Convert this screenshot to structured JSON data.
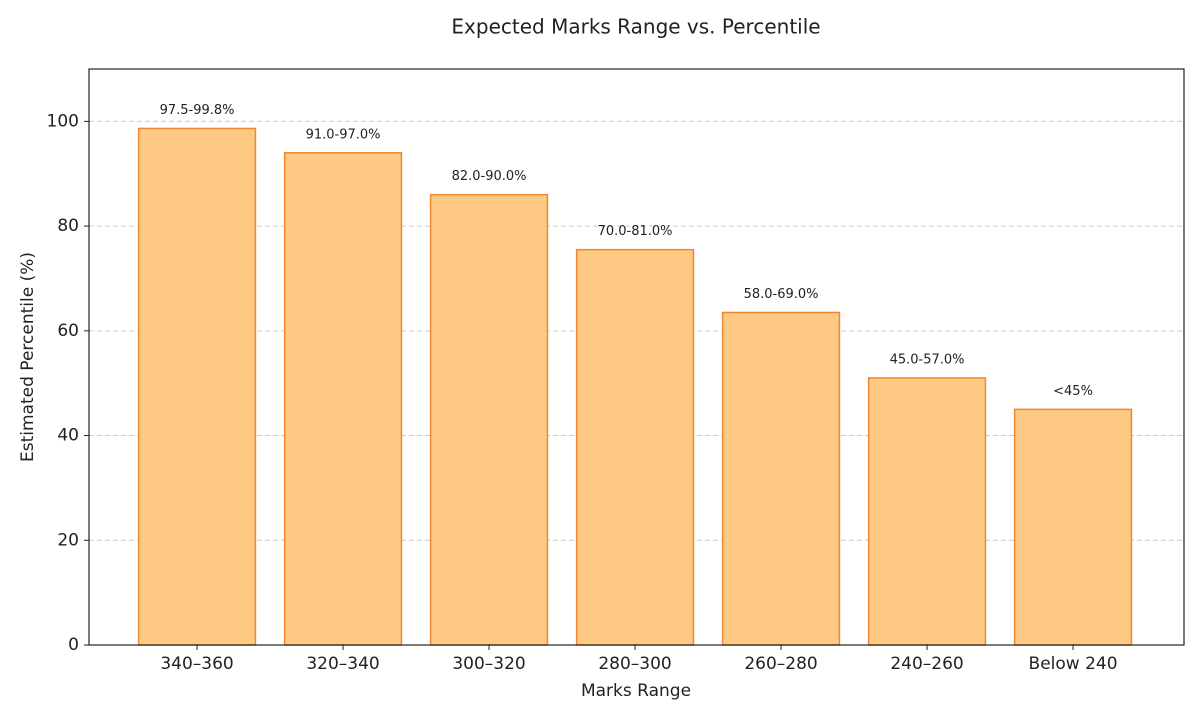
{
  "chart_data": {
    "type": "bar",
    "title": "Expected Marks Range vs. Percentile",
    "x_label": "Marks Range",
    "y_label": "Estimated Percentile (%)",
    "categories": [
      "340–360",
      "320–340",
      "300–320",
      "280–300",
      "260–280",
      "240–260",
      "Below 240"
    ],
    "values": [
      98.65,
      94,
      86,
      75.5,
      63.5,
      51,
      45
    ],
    "value_labels": [
      "97.5-99.8%",
      "91.0-97.0%",
      "82.0-90.0%",
      "70.0-81.0%",
      "58.0-69.0%",
      "45.0-57.0%",
      "<45%"
    ],
    "color": "#fdc984",
    "edge_color": "#f0892c",
    "ylim": [
      0,
      110
    ],
    "yticks": [
      0,
      20,
      40,
      60,
      80,
      100
    ],
    "grid": true
  }
}
